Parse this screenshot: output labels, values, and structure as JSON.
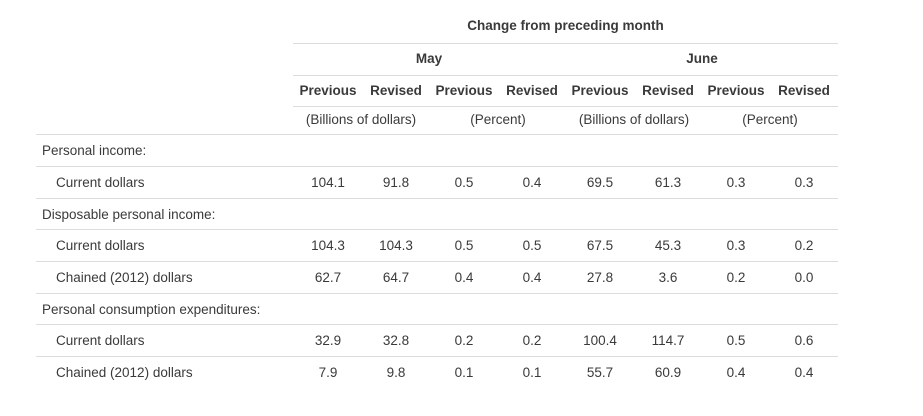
{
  "header": {
    "title": "Change from preceding month",
    "months": [
      "May",
      "June"
    ],
    "columns": [
      "Previous",
      "Revised",
      "Previous",
      "Revised",
      "Previous",
      "Revised",
      "Previous",
      "Revised"
    ],
    "units": [
      "(Billions of dollars)",
      "(Percent)",
      "(Billions of dollars)",
      "(Percent)"
    ]
  },
  "rows": [
    {
      "label": "Personal income:",
      "section": true,
      "values": []
    },
    {
      "label": "Current dollars",
      "section": false,
      "values": [
        "104.1",
        "91.8",
        "0.5",
        "0.4",
        "69.5",
        "61.3",
        "0.3",
        "0.3"
      ]
    },
    {
      "label": "Disposable personal income:",
      "section": true,
      "values": []
    },
    {
      "label": "Current dollars",
      "section": false,
      "values": [
        "104.3",
        "104.3",
        "0.5",
        "0.5",
        "67.5",
        "45.3",
        "0.3",
        "0.2"
      ]
    },
    {
      "label": "Chained (2012) dollars",
      "section": false,
      "values": [
        "62.7",
        "64.7",
        "0.4",
        "0.4",
        "27.8",
        "3.6",
        "0.2",
        "0.0"
      ]
    },
    {
      "label": "Personal consumption expenditures:",
      "section": true,
      "values": []
    },
    {
      "label": "Current dollars",
      "section": false,
      "values": [
        "32.9",
        "32.8",
        "0.2",
        "0.2",
        "100.4",
        "114.7",
        "0.5",
        "0.6"
      ]
    },
    {
      "label": "Chained (2012) dollars",
      "section": false,
      "values": [
        "7.9",
        "9.8",
        "0.1",
        "0.1",
        "55.7",
        "60.9",
        "0.4",
        "0.4"
      ]
    }
  ]
}
